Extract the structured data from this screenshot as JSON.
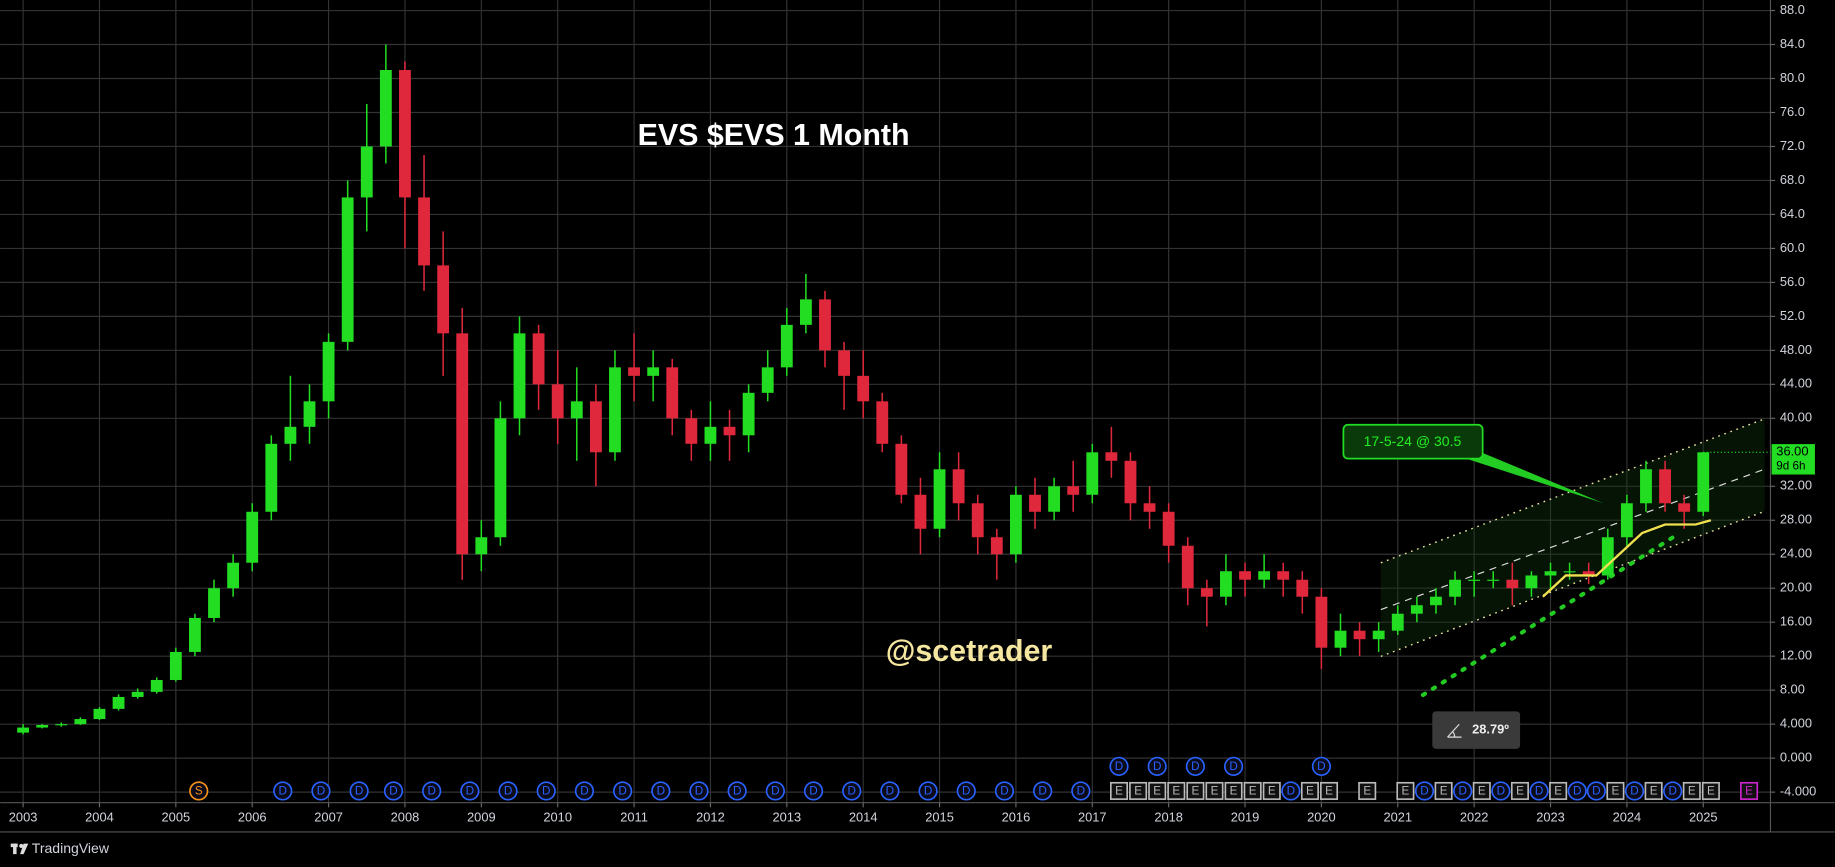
{
  "chart_data": {
    "type": "candlestick",
    "title": "EVS $EVS 1 Month",
    "watermark": "@scetrader",
    "x": [
      2003,
      2003.25,
      2003.5,
      2003.75,
      2004,
      2004.25,
      2004.5,
      2004.75,
      2005,
      2005.25,
      2005.5,
      2005.75,
      2006,
      2006.25,
      2006.5,
      2006.75,
      2007,
      2007.25,
      2007.5,
      2007.75,
      2008,
      2008.25,
      2008.5,
      2008.75,
      2009,
      2009.25,
      2009.5,
      2009.75,
      2010,
      2010.25,
      2010.5,
      2010.75,
      2011,
      2011.25,
      2011.5,
      2011.75,
      2012,
      2012.25,
      2012.5,
      2012.75,
      2013,
      2013.25,
      2013.5,
      2013.75,
      2014,
      2014.25,
      2014.5,
      2014.75,
      2015,
      2015.25,
      2015.5,
      2015.75,
      2016,
      2016.25,
      2016.5,
      2016.75,
      2017,
      2017.25,
      2017.5,
      2017.75,
      2018,
      2018.25,
      2018.5,
      2018.75,
      2019,
      2019.25,
      2019.5,
      2019.75,
      2020,
      2020.25,
      2020.5,
      2020.75,
      2021,
      2021.25,
      2021.5,
      2021.75,
      2022,
      2022.25,
      2022.5,
      2022.75,
      2023,
      2023.25,
      2023.5,
      2023.75,
      2024,
      2024.25,
      2024.5,
      2024.75,
      2025
    ],
    "open": [
      3,
      3.6,
      3.9,
      4,
      4.6,
      5.8,
      7.2,
      7.8,
      9.2,
      12.5,
      16.5,
      20,
      23,
      29,
      37,
      39,
      42,
      49,
      66,
      72,
      81,
      66,
      58,
      50,
      24,
      26,
      40,
      50,
      44,
      40,
      42,
      36,
      46,
      45,
      46,
      40,
      37,
      39,
      38,
      43,
      46,
      51,
      54,
      48,
      45,
      42,
      37,
      31,
      27,
      34,
      30,
      26,
      24,
      31,
      29,
      32,
      31,
      36,
      35,
      30,
      29,
      25,
      20,
      19,
      22,
      21,
      22,
      21,
      19,
      13,
      15,
      14,
      15,
      17,
      18,
      19,
      21,
      21,
      21,
      20,
      21.5,
      22,
      22,
      21.5,
      26,
      30,
      34,
      30,
      29
    ],
    "high": [
      4,
      4,
      4.2,
      4.8,
      6,
      7.5,
      8.2,
      9.5,
      13,
      17,
      21,
      24,
      30,
      38,
      45,
      44,
      50,
      68,
      77,
      84,
      82,
      71,
      62,
      53,
      28,
      42,
      52,
      51,
      48,
      46,
      44,
      48,
      50,
      48,
      47,
      41,
      42,
      41,
      44,
      48,
      53,
      57,
      55,
      49,
      48,
      43,
      38,
      33,
      36,
      36,
      31,
      27,
      32,
      33,
      33,
      35,
      37,
      39,
      36,
      32,
      30,
      26,
      21,
      24,
      23,
      24,
      23,
      22,
      20,
      17,
      16,
      16,
      18,
      19,
      20,
      22,
      22,
      22,
      23,
      22,
      23,
      23,
      23,
      27,
      31,
      35,
      35,
      31,
      36
    ],
    "low": [
      2.8,
      3.5,
      3.7,
      3.9,
      4.5,
      5.6,
      7,
      7.6,
      9,
      12,
      16,
      19,
      22,
      28,
      35,
      37,
      40,
      48,
      62,
      70,
      60,
      55,
      45,
      21,
      22,
      25,
      38,
      41,
      37,
      35,
      32,
      35,
      42,
      42,
      38,
      35,
      35,
      35,
      36,
      42,
      45,
      50,
      46,
      41,
      40,
      36,
      30,
      24,
      26,
      28,
      24,
      21,
      23,
      27,
      28,
      29,
      30,
      33,
      28,
      27,
      23,
      18,
      15.5,
      18,
      19,
      20,
      19,
      17,
      10.5,
      12,
      12,
      12.5,
      14.5,
      16,
      17,
      18,
      19,
      20,
      18,
      19,
      20,
      21,
      20.5,
      21,
      25,
      29,
      29,
      27,
      28.5
    ],
    "close": [
      3.6,
      3.9,
      4,
      4.6,
      5.8,
      7.2,
      7.8,
      9.2,
      12.5,
      16.5,
      20,
      23,
      29,
      37,
      39,
      42,
      49,
      66,
      72,
      81,
      66,
      58,
      50,
      24,
      26,
      40,
      50,
      44,
      40,
      42,
      36,
      46,
      45,
      46,
      40,
      37,
      39,
      38,
      43,
      46,
      51,
      54,
      48,
      45,
      42,
      37,
      31,
      27,
      34,
      30,
      26,
      24,
      31,
      29,
      32,
      31,
      36,
      35,
      30,
      29,
      25,
      20,
      19,
      22,
      21,
      22,
      21,
      19,
      13,
      15,
      14,
      15,
      17,
      18,
      19,
      21,
      21,
      21,
      20,
      21.5,
      22,
      22,
      21.5,
      26,
      30,
      34,
      30,
      29,
      36
    ],
    "up_color": "#22dd22",
    "down_color": "#e0283c",
    "moving_average": {
      "color": "#f0e050",
      "x": [
        2022.9,
        2023.2,
        2023.6,
        2023.9,
        2024.2,
        2024.5,
        2024.9,
        2025.1
      ],
      "values": [
        19,
        21.5,
        21.5,
        24,
        26.5,
        27.5,
        27.5,
        28
      ]
    },
    "xlim": [
      2002.7,
      2025.88
    ],
    "xticks": [
      2003,
      2004,
      2005,
      2006,
      2007,
      2008,
      2009,
      2010,
      2011,
      2012,
      2013,
      2014,
      2015,
      2016,
      2017,
      2018,
      2019,
      2020,
      2021,
      2022,
      2023,
      2024,
      2025
    ],
    "ylim": [
      -5.24,
      89.24
    ],
    "yticks": [
      {
        "value": 88,
        "label": "88.0"
      },
      {
        "value": 84,
        "label": "84.0"
      },
      {
        "value": 80,
        "label": "80.0"
      },
      {
        "value": 76,
        "label": "76.0"
      },
      {
        "value": 72,
        "label": "72.0"
      },
      {
        "value": 68,
        "label": "68.0"
      },
      {
        "value": 64,
        "label": "64.0"
      },
      {
        "value": 60,
        "label": "60.0"
      },
      {
        "value": 56,
        "label": "56.0"
      },
      {
        "value": 52,
        "label": "52.0"
      },
      {
        "value": 48,
        "label": "48.00"
      },
      {
        "value": 44,
        "label": "44.00"
      },
      {
        "value": 40,
        "label": "40.00"
      },
      {
        "value": 32,
        "label": "32.00"
      },
      {
        "value": 28,
        "label": "28.00"
      },
      {
        "value": 24,
        "label": "24.00"
      },
      {
        "value": 20,
        "label": "20.00"
      },
      {
        "value": 16,
        "label": "16.00"
      },
      {
        "value": 12,
        "label": "12.00"
      },
      {
        "value": 8,
        "label": "8.00"
      },
      {
        "value": 4,
        "label": "4.000"
      },
      {
        "value": 0,
        "label": "0.000"
      },
      {
        "value": -4,
        "label": "-4.000"
      }
    ],
    "grid": true,
    "last_price": {
      "value": 36,
      "label": "36.00",
      "countdown": "9d 6h",
      "color": "#22dd22"
    },
    "annotation": "17-5-24 @ 30.5",
    "angle_label": "28.79º",
    "events": {
      "split_label": "S",
      "dividend_label": "D",
      "earnings_label": "E",
      "split": [
        2005.3
      ],
      "dividends": [
        2006.4,
        2006.9,
        2007.4,
        2007.85,
        2008.35,
        2008.85,
        2009.35,
        2009.85,
        2010.35,
        2010.85,
        2011.35,
        2011.85,
        2012.35,
        2012.85,
        2013.35,
        2013.85,
        2014.35,
        2014.85,
        2015.35,
        2015.85,
        2016.35,
        2016.85,
        2017.35,
        2017.85,
        2018.35,
        2018.85,
        2019.6,
        2020.0,
        2021.35,
        2021.85,
        2022.35,
        2022.85,
        2023.35,
        2023.6,
        2024.1,
        2024.6
      ],
      "earnings": [
        2017.35,
        2017.6,
        2017.85,
        2018.1,
        2018.35,
        2018.6,
        2018.85,
        2019.1,
        2019.35,
        2019.85,
        2020.1,
        2020.6,
        2021.1,
        2021.6,
        2022.1,
        2022.6,
        2023.1,
        2023.85,
        2024.35,
        2024.85,
        2025.1
      ],
      "upcoming_earnings": [
        2025.6
      ]
    }
  },
  "footer": {
    "brand": "TradingView"
  }
}
